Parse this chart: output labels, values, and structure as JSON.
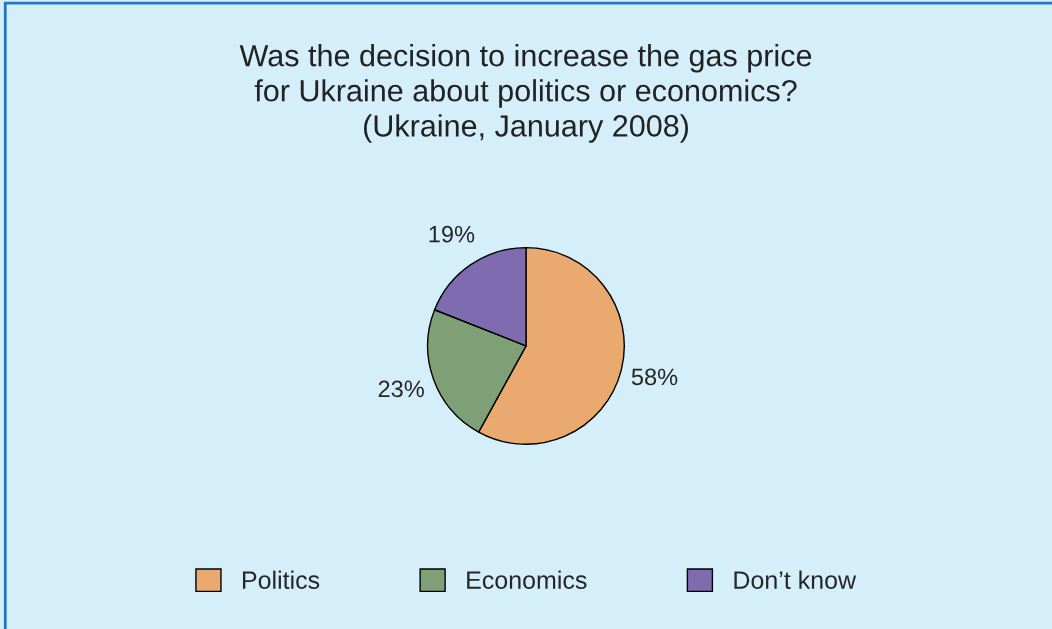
{
  "chart_data": {
    "type": "pie",
    "title": "Was the decision to increase the gas price\nfor Ukraine about politics or economics?\n(Ukraine, January 2008)",
    "categories": [
      "Politics",
      "Economics",
      "Don’t know"
    ],
    "values": [
      58,
      23,
      19
    ],
    "colors": [
      "#e9a96f",
      "#7fa077",
      "#7f6bb0"
    ],
    "value_labels": [
      "58%",
      "23%",
      "19%"
    ],
    "legend": "bottom"
  }
}
